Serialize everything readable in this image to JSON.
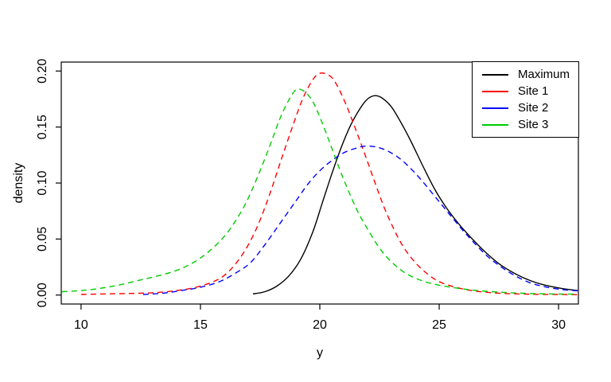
{
  "chart_data": {
    "type": "line",
    "title": "",
    "xlabel": "y",
    "ylabel": "density",
    "xlim": [
      9.17,
      30.83
    ],
    "ylim": [
      -0.008,
      0.208
    ],
    "grid": false,
    "legend_position": "top-right",
    "axis_color": "#000000",
    "background_color": "#ffffff",
    "xticks": [
      {
        "value": 10,
        "label": "10"
      },
      {
        "value": 15,
        "label": "15"
      },
      {
        "value": 20,
        "label": "20"
      },
      {
        "value": 25,
        "label": "25"
      },
      {
        "value": 30,
        "label": "30"
      }
    ],
    "yticks": [
      {
        "value": 0.0,
        "label": "0.00"
      },
      {
        "value": 0.05,
        "label": "0.05"
      },
      {
        "value": 0.1,
        "label": "0.10"
      },
      {
        "value": 0.15,
        "label": "0.15"
      },
      {
        "value": 0.2,
        "label": "0.20"
      }
    ],
    "series": [
      {
        "name": "Maximum",
        "color": "#000000",
        "line_style": "solid",
        "peak": {
          "x": 22.3,
          "y": 0.178
        },
        "points": [
          [
            17.2,
            0.001
          ],
          [
            17.7,
            0.003
          ],
          [
            18.2,
            0.008
          ],
          [
            18.7,
            0.017
          ],
          [
            19.2,
            0.032
          ],
          [
            19.7,
            0.056
          ],
          [
            20.1,
            0.082
          ],
          [
            20.5,
            0.108
          ],
          [
            20.9,
            0.132
          ],
          [
            21.3,
            0.152
          ],
          [
            21.7,
            0.167
          ],
          [
            22.0,
            0.175
          ],
          [
            22.3,
            0.178
          ],
          [
            22.6,
            0.176
          ],
          [
            23.0,
            0.168
          ],
          [
            23.4,
            0.154
          ],
          [
            23.8,
            0.138
          ],
          [
            24.3,
            0.116
          ],
          [
            24.8,
            0.095
          ],
          [
            25.3,
            0.078
          ],
          [
            25.8,
            0.064
          ],
          [
            26.3,
            0.052
          ],
          [
            26.9,
            0.039
          ],
          [
            27.5,
            0.028
          ],
          [
            28.1,
            0.02
          ],
          [
            28.8,
            0.013
          ],
          [
            29.4,
            0.009
          ],
          [
            30.1,
            0.006
          ],
          [
            30.8,
            0.004
          ]
        ]
      },
      {
        "name": "Site 1",
        "color": "#ff0000",
        "line_style": "dashed",
        "peak": {
          "x": 20.0,
          "y": 0.198
        },
        "points": [
          [
            10.0,
            0.0005
          ],
          [
            11.0,
            0.001
          ],
          [
            12.0,
            0.0014
          ],
          [
            13.0,
            0.002
          ],
          [
            13.8,
            0.0035
          ],
          [
            14.6,
            0.006
          ],
          [
            15.3,
            0.01
          ],
          [
            15.9,
            0.016
          ],
          [
            16.4,
            0.026
          ],
          [
            16.9,
            0.041
          ],
          [
            17.4,
            0.062
          ],
          [
            17.9,
            0.09
          ],
          [
            18.4,
            0.122
          ],
          [
            18.9,
            0.153
          ],
          [
            19.3,
            0.176
          ],
          [
            19.7,
            0.192
          ],
          [
            20.0,
            0.198
          ],
          [
            20.4,
            0.196
          ],
          [
            20.7,
            0.188
          ],
          [
            21.1,
            0.17
          ],
          [
            21.5,
            0.148
          ],
          [
            21.9,
            0.125
          ],
          [
            22.3,
            0.101
          ],
          [
            22.7,
            0.078
          ],
          [
            23.1,
            0.059
          ],
          [
            23.5,
            0.043
          ],
          [
            24.0,
            0.029
          ],
          [
            24.5,
            0.019
          ],
          [
            25.0,
            0.012
          ],
          [
            25.6,
            0.0075
          ],
          [
            26.3,
            0.0042
          ],
          [
            27.1,
            0.0022
          ],
          [
            28.0,
            0.0012
          ],
          [
            29.0,
            0.0007
          ],
          [
            30.0,
            0.0005
          ],
          [
            30.8,
            0.0004
          ]
        ]
      },
      {
        "name": "Site 2",
        "color": "#0000ff",
        "line_style": "dashed",
        "peak": {
          "x": 21.9,
          "y": 0.133
        },
        "points": [
          [
            12.6,
            0.0005
          ],
          [
            13.4,
            0.0016
          ],
          [
            14.2,
            0.004
          ],
          [
            15.0,
            0.007
          ],
          [
            15.8,
            0.012
          ],
          [
            16.5,
            0.02
          ],
          [
            17.1,
            0.029
          ],
          [
            17.7,
            0.045
          ],
          [
            18.3,
            0.063
          ],
          [
            18.9,
            0.081
          ],
          [
            19.5,
            0.099
          ],
          [
            20.0,
            0.111
          ],
          [
            20.5,
            0.12
          ],
          [
            21.0,
            0.127
          ],
          [
            21.5,
            0.131
          ],
          [
            21.9,
            0.133
          ],
          [
            22.4,
            0.132
          ],
          [
            22.9,
            0.128
          ],
          [
            23.4,
            0.121
          ],
          [
            23.9,
            0.111
          ],
          [
            24.4,
            0.099
          ],
          [
            24.9,
            0.086
          ],
          [
            25.4,
            0.073
          ],
          [
            25.9,
            0.06
          ],
          [
            26.4,
            0.048
          ],
          [
            27.0,
            0.035
          ],
          [
            27.6,
            0.025
          ],
          [
            28.2,
            0.017
          ],
          [
            28.8,
            0.011
          ],
          [
            29.4,
            0.0075
          ],
          [
            30.1,
            0.005
          ],
          [
            30.8,
            0.0038
          ]
        ]
      },
      {
        "name": "Site 3",
        "color": "#00cc00",
        "line_style": "dashed",
        "peak": {
          "x": 19.1,
          "y": 0.184
        },
        "points": [
          [
            9.2,
            0.003
          ],
          [
            10.0,
            0.004
          ],
          [
            10.8,
            0.006
          ],
          [
            11.6,
            0.009
          ],
          [
            12.4,
            0.013
          ],
          [
            13.2,
            0.017
          ],
          [
            14.0,
            0.022
          ],
          [
            14.7,
            0.029
          ],
          [
            15.3,
            0.038
          ],
          [
            15.9,
            0.05
          ],
          [
            16.4,
            0.064
          ],
          [
            16.9,
            0.082
          ],
          [
            17.4,
            0.106
          ],
          [
            17.9,
            0.133
          ],
          [
            18.3,
            0.156
          ],
          [
            18.6,
            0.17
          ],
          [
            18.9,
            0.181
          ],
          [
            19.1,
            0.184
          ],
          [
            19.4,
            0.181
          ],
          [
            19.7,
            0.173
          ],
          [
            20.0,
            0.159
          ],
          [
            20.4,
            0.137
          ],
          [
            20.8,
            0.114
          ],
          [
            21.2,
            0.093
          ],
          [
            21.6,
            0.074
          ],
          [
            22.0,
            0.059
          ],
          [
            22.4,
            0.045
          ],
          [
            22.8,
            0.034
          ],
          [
            23.3,
            0.024
          ],
          [
            23.8,
            0.017
          ],
          [
            24.4,
            0.012
          ],
          [
            25.0,
            0.0088
          ],
          [
            25.8,
            0.006
          ],
          [
            26.6,
            0.004
          ],
          [
            27.5,
            0.0026
          ],
          [
            28.5,
            0.0016
          ],
          [
            29.6,
            0.001
          ],
          [
            30.8,
            0.0008
          ]
        ]
      }
    ]
  }
}
